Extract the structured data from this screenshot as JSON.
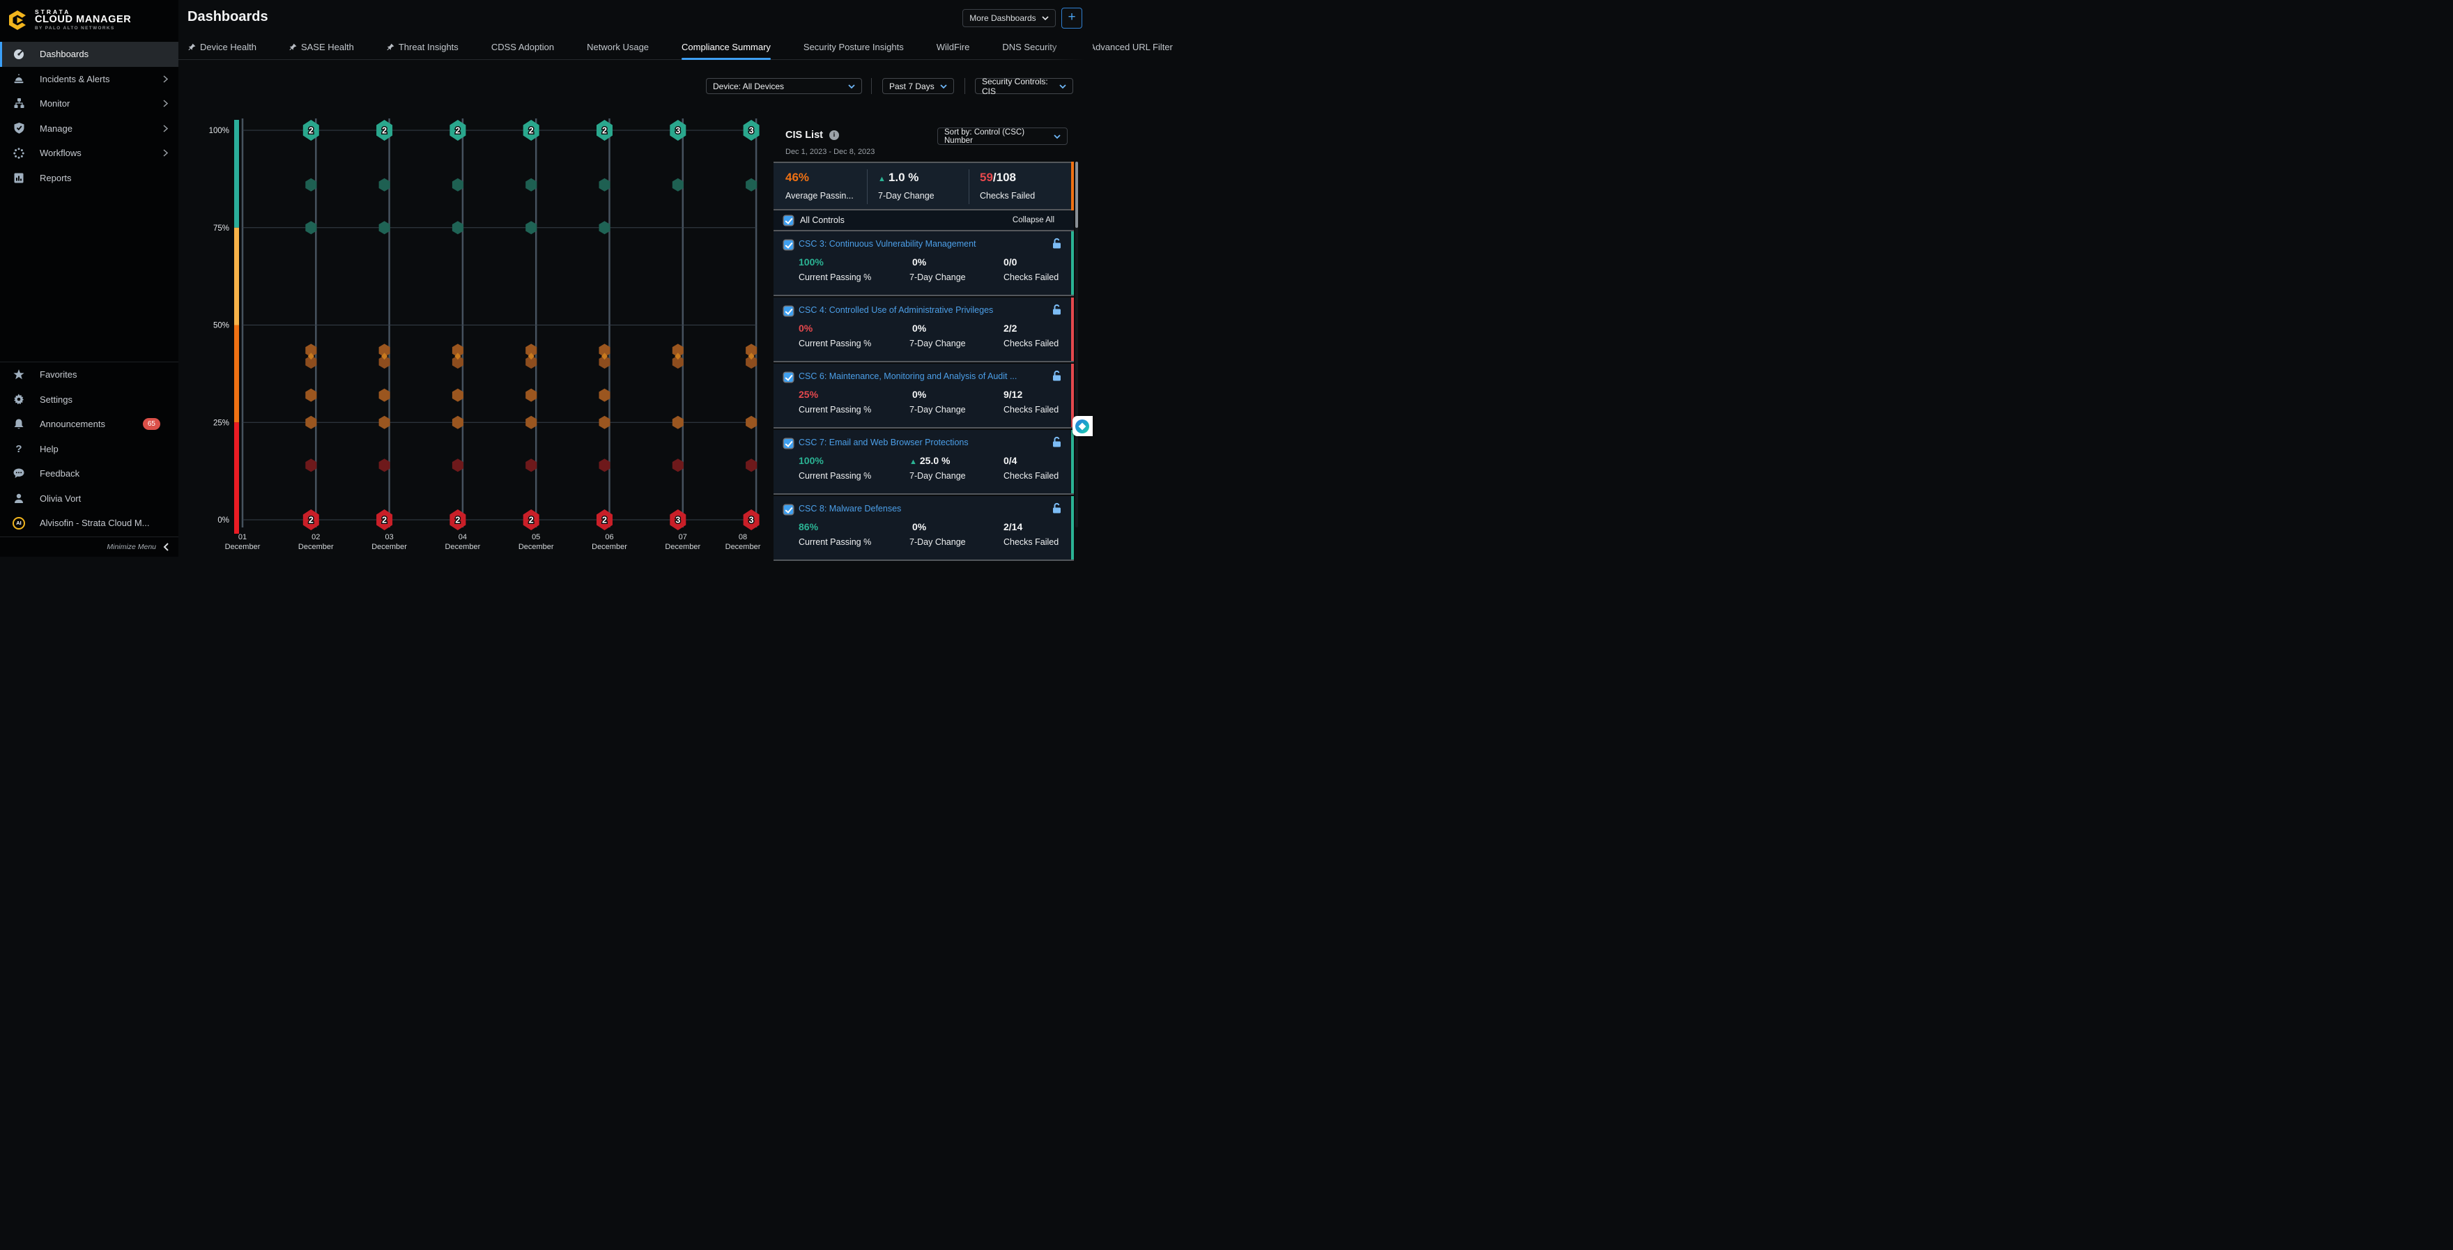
{
  "app": {
    "logo_top": "STRATA",
    "logo_main": "CLOUD MANAGER",
    "logo_sub": "BY PALO ALTO NETWORKS"
  },
  "sidebar": {
    "items": [
      {
        "label": "Dashboards",
        "active": true
      },
      {
        "label": "Incidents & Alerts",
        "expandable": true
      },
      {
        "label": "Monitor",
        "expandable": true
      },
      {
        "label": "Manage",
        "expandable": true
      },
      {
        "label": "Workflows",
        "expandable": true
      },
      {
        "label": "Reports"
      }
    ],
    "footer_items": [
      {
        "label": "Favorites"
      },
      {
        "label": "Settings"
      },
      {
        "label": "Announcements",
        "badge": "65"
      },
      {
        "label": "Help"
      },
      {
        "label": "Feedback"
      },
      {
        "label": "Olivia Vort"
      },
      {
        "label": "Alvisofin - Strata Cloud M...",
        "avatar": "AI"
      }
    ],
    "minimize": "Minimize Menu"
  },
  "header": {
    "title": "Dashboards",
    "more_dashboards": "More Dashboards",
    "add_button": "+"
  },
  "tabs": {
    "items": [
      {
        "label": "Device Health",
        "pinned": true
      },
      {
        "label": "SASE Health",
        "pinned": true
      },
      {
        "label": "Threat Insights",
        "pinned": true
      },
      {
        "label": "CDSS Adoption"
      },
      {
        "label": "Network Usage"
      },
      {
        "label": "Compliance Summary",
        "active": true
      },
      {
        "label": "Security Posture Insights"
      },
      {
        "label": "WildFire"
      },
      {
        "label": "DNS Security"
      },
      {
        "label": "Advanced URL Filter"
      }
    ]
  },
  "filters": {
    "device": "Device: All Devices",
    "time": "Past 7 Days",
    "controls": "Security Controls: CIS"
  },
  "chart_data": {
    "type": "scatter",
    "title": "",
    "xlabel": "",
    "ylabel": "",
    "ylim": [
      0,
      100
    ],
    "grid": true,
    "x_categories": [
      {
        "day": "01",
        "month": "December"
      },
      {
        "day": "02",
        "month": "December"
      },
      {
        "day": "03",
        "month": "December"
      },
      {
        "day": "04",
        "month": "December"
      },
      {
        "day": "05",
        "month": "December"
      },
      {
        "day": "06",
        "month": "December"
      },
      {
        "day": "07",
        "month": "December"
      },
      {
        "day": "08",
        "month": "December"
      }
    ],
    "y_ticks": [
      {
        "value": 100,
        "label": "100%"
      },
      {
        "value": 75,
        "label": "75%"
      },
      {
        "value": 50,
        "label": "50%"
      },
      {
        "value": 25,
        "label": "25%"
      },
      {
        "value": 0,
        "label": "0%"
      }
    ],
    "colorbar_segments": [
      {
        "from": 75,
        "to": 100,
        "color": "#2BAE9B"
      },
      {
        "from": 50,
        "to": 75,
        "color": "#F8B349"
      },
      {
        "from": 25,
        "to": 50,
        "color": "#EF7113"
      },
      {
        "from": 0,
        "to": 25,
        "color": "#EA1C24"
      }
    ],
    "series": [
      {
        "name": "controls-at-100pct-cluster",
        "y": 100,
        "marker": "large",
        "color": "#2AA78D",
        "counts": [
          null,
          2,
          2,
          2,
          2,
          2,
          3,
          3
        ]
      },
      {
        "name": "control-at-86pct",
        "y": 86,
        "marker": "small",
        "color": "#1E6052",
        "present": [
          0,
          1,
          1,
          1,
          1,
          1,
          1,
          1
        ]
      },
      {
        "name": "control-at-75pct",
        "y": 75,
        "marker": "small",
        "color": "#1F6355",
        "present": [
          0,
          1,
          1,
          1,
          1,
          1,
          0,
          0
        ]
      },
      {
        "name": "control-at-43pct",
        "y": 43.5,
        "marker": "small",
        "color": "#9B561F",
        "present": [
          0,
          1,
          1,
          1,
          1,
          1,
          1,
          1
        ]
      },
      {
        "name": "control-at-40pct",
        "y": 40.5,
        "marker": "small",
        "color": "#8D4D1E",
        "present": [
          0,
          1,
          1,
          1,
          1,
          1,
          1,
          1
        ],
        "overlap_color": "#C87A1E"
      },
      {
        "name": "control-at-32pct",
        "y": 32,
        "marker": "small",
        "color": "#9B561F",
        "present": [
          0,
          1,
          1,
          1,
          1,
          1,
          0,
          0
        ]
      },
      {
        "name": "control-at-25pct",
        "y": 25,
        "marker": "small",
        "color": "#9A5620",
        "present": [
          0,
          1,
          1,
          1,
          1,
          1,
          1,
          1
        ]
      },
      {
        "name": "control-at-14pct",
        "y": 14,
        "marker": "small",
        "color": "#6E191B",
        "present": [
          0,
          1,
          1,
          1,
          1,
          1,
          1,
          1
        ]
      },
      {
        "name": "controls-at-0pct-cluster",
        "y": 0,
        "marker": "large",
        "color": "#C91F28",
        "counts": [
          null,
          2,
          2,
          2,
          2,
          2,
          3,
          3
        ]
      }
    ]
  },
  "panel": {
    "title": "CIS List",
    "sort": "Sort by: Control (CSC) Number",
    "date_range": "Dec 1, 2023 - Dec 8, 2023",
    "summary": {
      "passing": "46%",
      "passing_color": "#EF7113",
      "change_arrow": "▲",
      "change": "1.0 %",
      "failed_value": "59",
      "failed_value_color": "#E5484D",
      "failed_total": "/108",
      "accent_color": "#EF7113",
      "labels": {
        "passing": "Average Passin...",
        "change": "7-Day Change",
        "failed": "Checks Failed"
      }
    },
    "all_controls": {
      "label": "All Controls",
      "collapse": "Collapse All"
    },
    "stat_labels": {
      "passing": "Current Passing %",
      "change": "7-Day Change",
      "failed": "Checks Failed"
    },
    "cards": [
      {
        "title": "CSC 3: Continuous Vulnerability Management",
        "passing": "100%",
        "passing_color": "#2BB394",
        "change_arrow": "",
        "change": "0%",
        "failed": "0/0",
        "accent_color": "#2BB394"
      },
      {
        "title": "CSC 4: Controlled Use of Administrative Privileges",
        "passing": "0%",
        "passing_color": "#E5484D",
        "change_arrow": "",
        "change": "0%",
        "failed": "2/2",
        "accent_color": "#E5484D"
      },
      {
        "title": "CSC 6: Maintenance, Monitoring and Analysis of Audit ...",
        "passing": "25%",
        "passing_color": "#E5484D",
        "change_arrow": "",
        "change": "0%",
        "failed": "9/12",
        "accent_color": "#E5484D"
      },
      {
        "title": "CSC 7: Email and Web Browser Protections",
        "passing": "100%",
        "passing_color": "#2BB394",
        "change_arrow": "▲",
        "change": "25.0 %",
        "failed": "0/4",
        "accent_color": "#2BB394"
      },
      {
        "title": "CSC 8: Malware Defenses",
        "passing": "86%",
        "passing_color": "#2BB394",
        "change_arrow": "",
        "change": "0%",
        "failed": "2/14",
        "accent_color": "#2BB394"
      }
    ]
  }
}
